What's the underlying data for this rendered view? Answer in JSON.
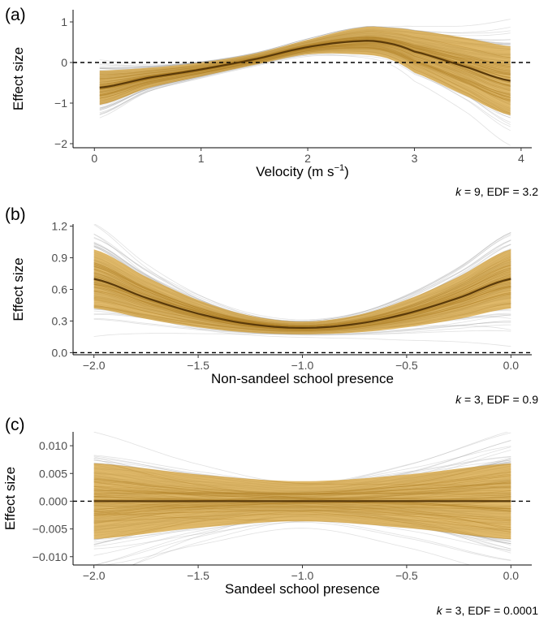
{
  "colors": {
    "draws": "#aaaaaa",
    "band": "#d4a037",
    "mean": "#5a3a0a",
    "zero": "#000000"
  },
  "chart_data": [
    {
      "type": "line",
      "panel": "(a)",
      "ylabel": "Effect size",
      "xlabel_main": "Velocity (m s",
      "xlabel_sup": "−1",
      "xlabel_end": ")",
      "note_k": "k",
      "note_rest": " = 9, EDF = 3.2",
      "xlim": [
        -0.2,
        4.1
      ],
      "ylim": [
        -2.1,
        1.3
      ],
      "xticks": [
        0,
        1,
        2,
        3,
        4
      ],
      "xticklabels": [
        "0",
        "1",
        "2",
        "3",
        "4"
      ],
      "yticks": [
        -2,
        -1,
        0,
        1
      ],
      "yticklabels": [
        "−2",
        "−1",
        "0",
        "1"
      ],
      "zero_line": 0,
      "series": [
        {
          "x": [
            0.05,
            0.5,
            1.0,
            1.5,
            2.0,
            2.5,
            2.75,
            3.0,
            3.5,
            3.9
          ],
          "y": [
            -0.62,
            -0.38,
            -0.17,
            0.08,
            0.38,
            0.53,
            0.48,
            0.27,
            -0.12,
            -0.45
          ]
        }
      ],
      "band_width": [
        0.42,
        0.25,
        0.17,
        0.14,
        0.18,
        0.33,
        0.38,
        0.52,
        0.72,
        0.85
      ],
      "draw_width": [
        0.72,
        0.4,
        0.27,
        0.22,
        0.3,
        0.5,
        0.57,
        0.78,
        1.05,
        1.35
      ]
    },
    {
      "type": "line",
      "panel": "(b)",
      "ylabel": "Effect size",
      "xlabel_main": "Non-sandeel school presence",
      "xlabel_sup": "",
      "xlabel_end": "",
      "note_k": "k",
      "note_rest": " = 3, EDF =  0.9",
      "xlim": [
        -2.1,
        0.1
      ],
      "ylim": [
        -0.02,
        1.22
      ],
      "xticks": [
        -2,
        -1.5,
        -1,
        -0.5,
        0
      ],
      "xticklabels": [
        "−2.0",
        "−1.5",
        "−1.0",
        "−0.5",
        "0.0"
      ],
      "yticks": [
        0,
        0.3,
        0.6,
        0.9,
        1.2
      ],
      "yticklabels": [
        "0.0",
        "0.3",
        "0.6",
        "0.9",
        "1.2"
      ],
      "zero_line": 0,
      "series": [
        {
          "x": [
            -2,
            -1.75,
            -1.5,
            -1.25,
            -1,
            -0.75,
            -0.5,
            -0.25,
            0
          ],
          "y": [
            0.7,
            0.52,
            0.37,
            0.27,
            0.235,
            0.27,
            0.37,
            0.52,
            0.7
          ]
        }
      ],
      "band_width": [
        0.28,
        0.2,
        0.13,
        0.08,
        0.06,
        0.08,
        0.13,
        0.2,
        0.28
      ],
      "draw_width": [
        0.42,
        0.3,
        0.2,
        0.12,
        0.09,
        0.12,
        0.2,
        0.3,
        0.42
      ]
    },
    {
      "type": "line",
      "panel": "(c)",
      "ylabel": "Effect size",
      "xlabel_main": "Sandeel school presence",
      "xlabel_sup": "",
      "xlabel_end": "",
      "note_k": "k",
      "note_rest": " = 3, EDF =  0.0001",
      "xlim": [
        -2.1,
        0.1
      ],
      "ylim": [
        -0.0115,
        0.0125
      ],
      "xticks": [
        -2,
        -1.5,
        -1,
        -0.5,
        0
      ],
      "xticklabels": [
        "−2.0",
        "−1.5",
        "−1.0",
        "−0.5",
        "0.0"
      ],
      "yticks": [
        -0.01,
        -0.005,
        0,
        0.005,
        0.01
      ],
      "yticklabels": [
        "−0.010",
        "−0.005",
        "0.000",
        "0.005",
        "0.010"
      ],
      "zero_line": 0,
      "series": [
        {
          "x": [
            -2,
            -1.5,
            -1,
            -0.5,
            0
          ],
          "y": [
            0,
            0,
            0,
            0,
            0
          ]
        }
      ],
      "band_width": [
        0.0068,
        0.0048,
        0.0036,
        0.0048,
        0.0068
      ],
      "draw_width": [
        0.0115,
        0.0075,
        0.0045,
        0.0075,
        0.0115
      ]
    }
  ]
}
